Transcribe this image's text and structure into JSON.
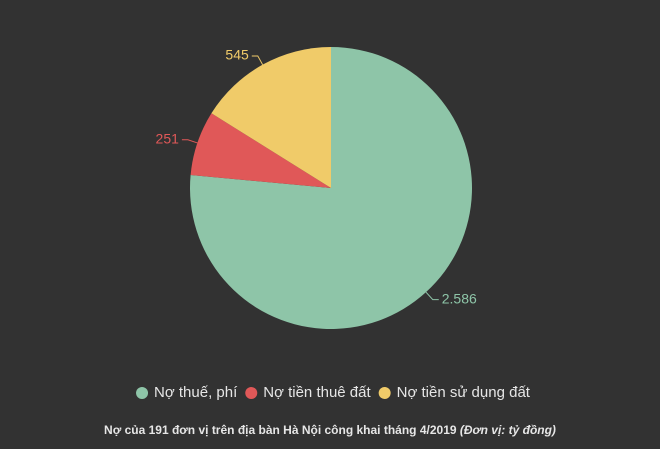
{
  "chart_data": {
    "type": "pie",
    "title": "Nợ của 191 đơn vị trên địa bàn Hà Nội công khai tháng 4/2019",
    "subtitle": "(Đơn vị: tỷ đồng)",
    "categories": [
      "Nợ thuế, phí",
      "Nợ tiền thuê đất",
      "Nợ tiền sử dụng đất"
    ],
    "values": [
      2586,
      251,
      545
    ],
    "value_labels": [
      "2.586",
      "251",
      "545"
    ],
    "colors": [
      "#8ec5a8",
      "#e05858",
      "#f0cb69"
    ],
    "legend": "bottom"
  }
}
